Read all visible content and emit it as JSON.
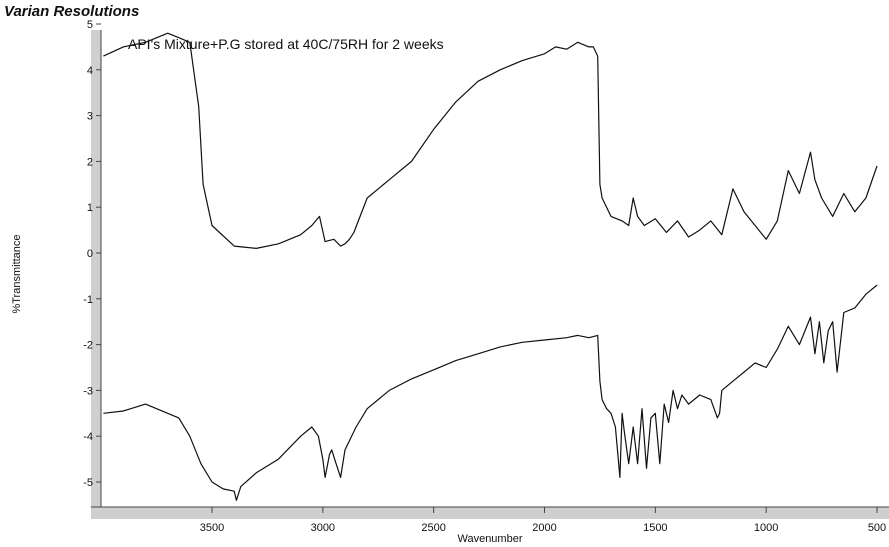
{
  "header": {
    "brand": "Varian Resolutions"
  },
  "chart_data": {
    "type": "line",
    "title": "API's Mixture+P.G stored at 40C/75RH for 2 weeks",
    "xlabel": "Wavenumber",
    "ylabel": "%Transmittance",
    "xlim": [
      4000,
      500
    ],
    "ylim": [
      -5.7,
      5.2
    ],
    "x_ticks": [
      3500,
      3000,
      2500,
      2000,
      1500,
      1000,
      500
    ],
    "x_tick_labels": [
      "3500",
      "3000",
      "2500",
      "2000",
      "1500",
      "1000",
      "500"
    ],
    "y_ticks": [
      5,
      4,
      3,
      2,
      1,
      0,
      -1,
      -2,
      -3,
      -4,
      -5
    ],
    "y_tick_labels": [
      "5",
      "4",
      "3",
      "2",
      "1",
      "0",
      "-1",
      "-2",
      "-3",
      "-4",
      "-5"
    ],
    "grid": false,
    "legend": "none",
    "line_color": "#111111",
    "series": [
      {
        "x": [
          3990,
          3900,
          3800,
          3700,
          3650,
          3600,
          3560,
          3540,
          3500,
          3400,
          3300,
          3200,
          3100,
          3050,
          3015,
          2990,
          2950,
          2920,
          2900,
          2880,
          2860,
          2800,
          2700,
          2600,
          2500,
          2400,
          2300,
          2200,
          2100,
          2000,
          1950,
          1900,
          1850,
          1800,
          1780,
          1760,
          1750,
          1740,
          1700,
          1650,
          1620,
          1600,
          1580,
          1550,
          1500,
          1450,
          1400,
          1350,
          1300,
          1250,
          1200,
          1150,
          1100,
          1050,
          1000,
          950,
          900,
          850,
          800,
          780,
          750,
          700,
          650,
          600,
          550,
          500
        ],
        "y": [
          4.3,
          4.5,
          4.6,
          4.8,
          4.7,
          4.6,
          3.2,
          1.5,
          0.6,
          0.15,
          0.1,
          0.2,
          0.4,
          0.6,
          0.8,
          0.25,
          0.3,
          0.15,
          0.2,
          0.3,
          0.45,
          1.2,
          1.6,
          2.0,
          2.7,
          3.3,
          3.75,
          4.0,
          4.2,
          4.35,
          4.5,
          4.45,
          4.6,
          4.5,
          4.5,
          4.3,
          1.5,
          1.2,
          0.8,
          0.7,
          0.6,
          1.2,
          0.8,
          0.6,
          0.75,
          0.45,
          0.7,
          0.35,
          0.5,
          0.7,
          0.4,
          1.4,
          0.9,
          0.6,
          0.3,
          0.7,
          1.8,
          1.3,
          2.2,
          1.6,
          1.2,
          0.8,
          1.3,
          0.9,
          1.2,
          1.9
        ]
      },
      {
        "x": [
          3990,
          3900,
          3800,
          3700,
          3650,
          3600,
          3550,
          3500,
          3450,
          3400,
          3390,
          3370,
          3300,
          3200,
          3100,
          3050,
          3020,
          3000,
          2990,
          2970,
          2960,
          2940,
          2920,
          2900,
          2850,
          2800,
          2700,
          2600,
          2500,
          2400,
          2300,
          2200,
          2100,
          2000,
          1900,
          1850,
          1800,
          1760,
          1750,
          1740,
          1720,
          1700,
          1680,
          1660,
          1650,
          1640,
          1620,
          1600,
          1580,
          1560,
          1540,
          1520,
          1500,
          1480,
          1460,
          1440,
          1420,
          1400,
          1380,
          1350,
          1300,
          1250,
          1220,
          1210,
          1200,
          1150,
          1100,
          1050,
          1000,
          950,
          900,
          850,
          800,
          780,
          760,
          740,
          720,
          700,
          680,
          650,
          600,
          550,
          500
        ],
        "y": [
          -3.5,
          -3.45,
          -3.3,
          -3.5,
          -3.6,
          -4.0,
          -4.6,
          -5.0,
          -5.15,
          -5.2,
          -5.4,
          -5.1,
          -4.8,
          -4.5,
          -4.0,
          -3.8,
          -4.0,
          -4.5,
          -4.9,
          -4.4,
          -4.3,
          -4.6,
          -4.9,
          -4.3,
          -3.8,
          -3.4,
          -3.0,
          -2.75,
          -2.55,
          -2.35,
          -2.2,
          -2.05,
          -1.95,
          -1.9,
          -1.85,
          -1.8,
          -1.85,
          -1.8,
          -2.8,
          -3.2,
          -3.4,
          -3.5,
          -3.8,
          -4.9,
          -3.5,
          -3.9,
          -4.6,
          -3.8,
          -4.6,
          -3.4,
          -4.7,
          -3.6,
          -3.5,
          -4.6,
          -3.3,
          -3.7,
          -3.0,
          -3.4,
          -3.1,
          -3.3,
          -3.1,
          -3.2,
          -3.6,
          -3.5,
          -3.0,
          -2.8,
          -2.6,
          -2.4,
          -2.5,
          -2.1,
          -1.6,
          -2.0,
          -1.4,
          -2.2,
          -1.5,
          -2.4,
          -1.7,
          -1.5,
          -2.6,
          -1.3,
          -1.2,
          -0.9,
          -0.7
        ]
      }
    ]
  }
}
